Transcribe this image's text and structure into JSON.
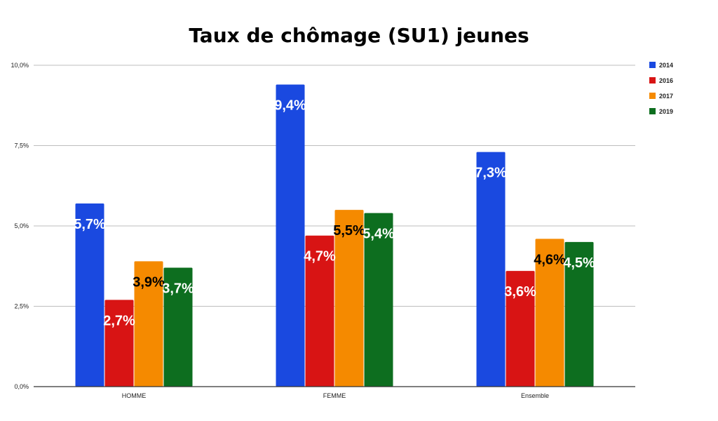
{
  "chart_data": {
    "type": "bar",
    "title": "Taux de chômage (SU1) jeunes",
    "categories": [
      "HOMME",
      "FEMME",
      "Ensemble"
    ],
    "series": [
      {
        "name": "2014",
        "color": "#1a49e0",
        "label_color": "#ffffff",
        "values": [
          5.7,
          9.4,
          7.3
        ],
        "labels": [
          "5,7%",
          "9,4%",
          "7,3%"
        ]
      },
      {
        "name": "2016",
        "color": "#d81414",
        "label_color": "#ffffff",
        "values": [
          2.7,
          4.7,
          3.6
        ],
        "labels": [
          "2,7%",
          "4,7%",
          "3,6%"
        ]
      },
      {
        "name": "2017",
        "color": "#f58a00",
        "label_color": "#000000",
        "values": [
          3.9,
          5.5,
          4.6
        ],
        "labels": [
          "3,9%",
          "5,5%",
          "4,6%"
        ]
      },
      {
        "name": "2019",
        "color": "#0d6e1f",
        "label_color": "#ffffff",
        "values": [
          3.7,
          5.4,
          4.5
        ],
        "labels": [
          "3,7%",
          "5,4%",
          "4,5%"
        ]
      }
    ],
    "y_ticks": [
      {
        "value": 0,
        "label": "0,0%"
      },
      {
        "value": 2.5,
        "label": "2,5%"
      },
      {
        "value": 5,
        "label": "5,0%"
      },
      {
        "value": 7.5,
        "label": "7,5%"
      },
      {
        "value": 10,
        "label": "10,0%"
      }
    ],
    "ylim": [
      0,
      10
    ],
    "grid": true,
    "legend_position": "top-right"
  }
}
